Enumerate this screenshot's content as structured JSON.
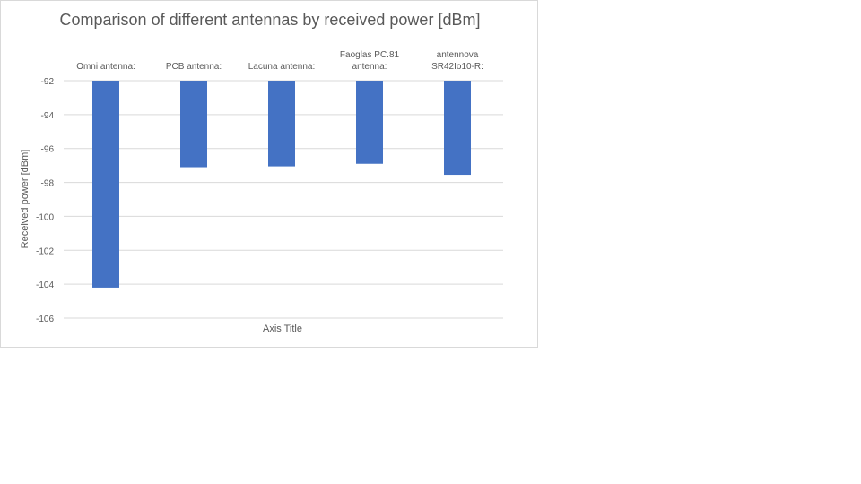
{
  "chart_data": {
    "type": "bar",
    "title": "Comparison of different antennas by received power [dBm]",
    "xlabel": "Axis Title",
    "ylabel": "Received power [dBm]",
    "categories": [
      [
        "Omni antenna:"
      ],
      [
        "PCB antenna:"
      ],
      [
        "Lacuna antenna:"
      ],
      [
        "Faoglas PC.81",
        "antenna:"
      ],
      [
        "antennova",
        "SR42Io10-R:"
      ]
    ],
    "values": [
      -104.2,
      -97.1,
      -97.05,
      -96.9,
      -97.55
    ],
    "ylim": [
      -106,
      -92
    ],
    "yticks": [
      -92,
      -94,
      -96,
      -98,
      -100,
      -102,
      -104,
      -106
    ],
    "ytick_labels": [
      "-92",
      "-94",
      "-96",
      "-98",
      "-100",
      "-102",
      "-104",
      "-106"
    ],
    "grid": true,
    "legend": "none",
    "bar_color": "#4472c4",
    "grid_color": "#d9d9d9"
  }
}
